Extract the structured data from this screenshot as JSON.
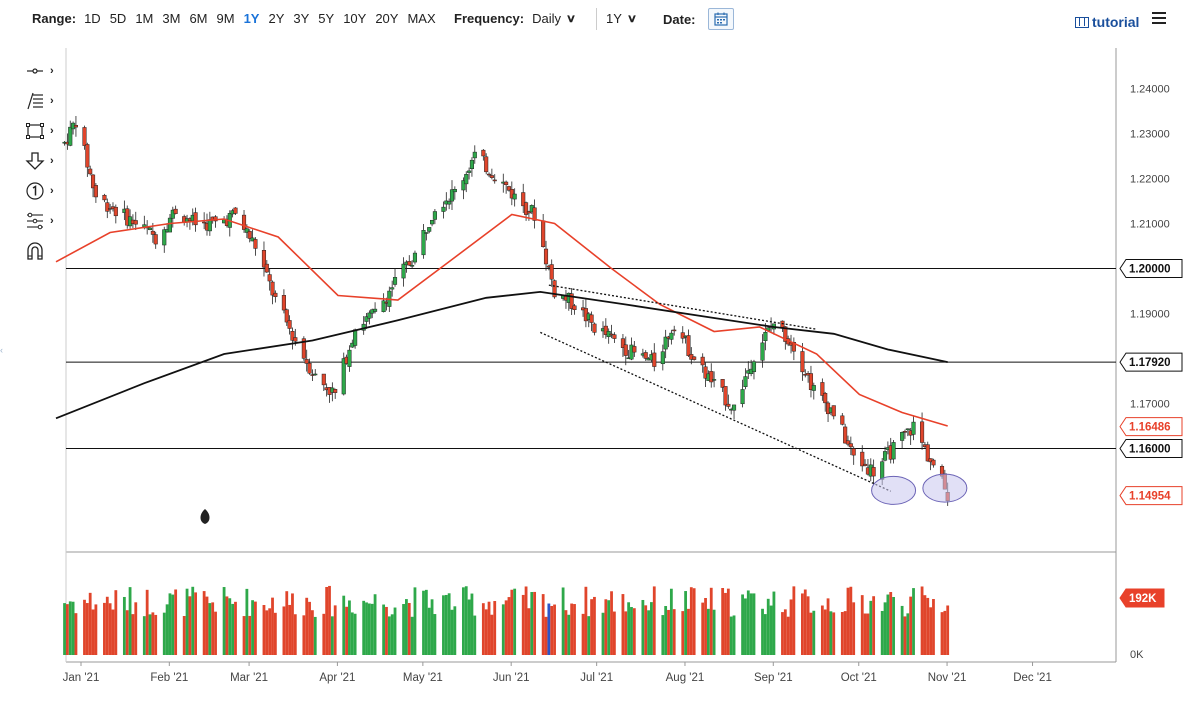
{
  "toolbar": {
    "range_label": "Range:",
    "ranges": [
      "1D",
      "5D",
      "1M",
      "3M",
      "6M",
      "9M",
      "1Y",
      "2Y",
      "3Y",
      "5Y",
      "10Y",
      "20Y",
      "MAX"
    ],
    "active_range": "1Y",
    "frequency_label": "Frequency:",
    "frequency_value": "Daily",
    "period_value": "1Y",
    "date_label": "Date:",
    "tutorial_label": "tutorial"
  },
  "left_tools": [
    {
      "name": "crosshair-tool",
      "icon": "crosshair-icon"
    },
    {
      "name": "lines-tool",
      "icon": "trendline-icon"
    },
    {
      "name": "shapes-tool",
      "icon": "rectangle-icon"
    },
    {
      "name": "arrow-tool",
      "icon": "down-arrow-icon"
    },
    {
      "name": "annotation-tool",
      "icon": "circled-one-icon"
    },
    {
      "name": "measure-tool",
      "icon": "fib-icon"
    },
    {
      "name": "magnet-tool",
      "icon": "magnet-icon"
    }
  ],
  "colors": {
    "up": "#2ea84a",
    "down": "#e0452b",
    "ma_short": "#e8412a",
    "ma_long": "#111111",
    "level_box": "#e8412a",
    "level_dark_bg": "#ffffff",
    "highlight_ellipse": "#c9c6ee",
    "volume_up": "#2ea84a",
    "volume_down": "#e0452b",
    "volume_blue": "#2d55c8"
  },
  "chart_data": {
    "type": "line",
    "title": "",
    "xlabel": "",
    "ylabel": "",
    "x_ticks": [
      "Jan '21",
      "Feb '21",
      "Mar '21",
      "Apr '21",
      "May '21",
      "Jun '21",
      "Jul '21",
      "Aug '21",
      "Sep '21",
      "Oct '21",
      "Nov '21",
      "Dec '21"
    ],
    "y_ticks": [
      "1.24000",
      "1.23000",
      "1.22000",
      "1.21000",
      "1.19000",
      "1.17000"
    ],
    "ylim": [
      1.137,
      1.249
    ],
    "x_range": [
      "2021-01-01",
      "2021-12-31"
    ],
    "price_series": {
      "name": "",
      "x": [
        "2021-01-01",
        "2021-01-08",
        "2021-01-15",
        "2021-01-22",
        "2021-01-29",
        "2021-02-05",
        "2021-02-12",
        "2021-02-19",
        "2021-02-26",
        "2021-03-05",
        "2021-03-12",
        "2021-03-19",
        "2021-03-26",
        "2021-04-02",
        "2021-04-09",
        "2021-04-16",
        "2021-04-23",
        "2021-04-30",
        "2021-05-07",
        "2021-05-14",
        "2021-05-21",
        "2021-05-28",
        "2021-06-04",
        "2021-06-11",
        "2021-06-18",
        "2021-06-25",
        "2021-07-02",
        "2021-07-09",
        "2021-07-16",
        "2021-07-23",
        "2021-07-30",
        "2021-08-06",
        "2021-08-13",
        "2021-08-20",
        "2021-08-27",
        "2021-09-03",
        "2021-09-10",
        "2021-09-17",
        "2021-09-24",
        "2021-10-01",
        "2021-10-08",
        "2021-10-15",
        "2021-10-22",
        "2021-10-29",
        "2021-11-05",
        "2021-11-10"
      ],
      "y": [
        1.224,
        1.233,
        1.216,
        1.213,
        1.21,
        1.207,
        1.213,
        1.21,
        1.21,
        1.212,
        1.205,
        1.193,
        1.184,
        1.176,
        1.172,
        1.187,
        1.19,
        1.197,
        1.203,
        1.214,
        1.217,
        1.225,
        1.221,
        1.216,
        1.212,
        1.195,
        1.192,
        1.187,
        1.184,
        1.181,
        1.179,
        1.188,
        1.18,
        1.174,
        1.169,
        1.181,
        1.188,
        1.183,
        1.173,
        1.168,
        1.158,
        1.155,
        1.16,
        1.165,
        1.156,
        1.15
      ]
    },
    "ma_short": {
      "name": "",
      "x": [
        "2021-01-01",
        "2021-01-20",
        "2021-02-10",
        "2021-03-01",
        "2021-03-20",
        "2021-04-10",
        "2021-05-01",
        "2021-05-20",
        "2021-06-10",
        "2021-06-25",
        "2021-07-15",
        "2021-08-01",
        "2021-08-20",
        "2021-09-05",
        "2021-09-25",
        "2021-10-10",
        "2021-10-25",
        "2021-11-10"
      ],
      "y": [
        1.2015,
        1.208,
        1.21,
        1.211,
        1.207,
        1.194,
        1.193,
        1.202,
        1.212,
        1.21,
        1.2,
        1.192,
        1.186,
        1.187,
        1.181,
        1.172,
        1.168,
        1.165
      ]
    },
    "ma_long": {
      "name": "",
      "x": [
        "2021-01-01",
        "2021-02-01",
        "2021-03-01",
        "2021-04-01",
        "2021-05-01",
        "2021-06-01",
        "2021-06-20",
        "2021-07-20",
        "2021-08-20",
        "2021-09-10",
        "2021-10-01",
        "2021-10-20",
        "2021-11-10"
      ],
      "y": [
        1.1667,
        1.1745,
        1.181,
        1.184,
        1.1885,
        1.1935,
        1.1948,
        1.192,
        1.189,
        1.187,
        1.1855,
        1.182,
        1.1792
      ]
    },
    "horizontal_levels": [
      {
        "value": 1.2,
        "label": "1.20000"
      },
      {
        "value": 1.1792,
        "label": "1.17920"
      },
      {
        "value": 1.16,
        "label": "1.16000"
      }
    ],
    "price_labels": [
      {
        "value": 1.16486,
        "label": "1.16486",
        "style": "ma"
      },
      {
        "value": 1.14954,
        "label": "1.14954",
        "style": "last"
      }
    ],
    "trendlines": [
      {
        "x": [
          "2021-06-20",
          "2021-10-21"
        ],
        "y": [
          1.1858,
          1.1505
        ]
      },
      {
        "x": [
          "2021-06-23",
          "2021-09-25"
        ],
        "y": [
          1.1963,
          1.1865
        ]
      }
    ],
    "highlight_ellipses": [
      {
        "x": "2021-10-22",
        "y": 1.1507
      },
      {
        "x": "2021-11-09",
        "y": 1.1512
      }
    ],
    "volume": {
      "axis_ticks": [
        "0K"
      ],
      "last_label": "192K",
      "ylim": [
        0,
        260
      ]
    },
    "grid": false,
    "legend": "none"
  }
}
